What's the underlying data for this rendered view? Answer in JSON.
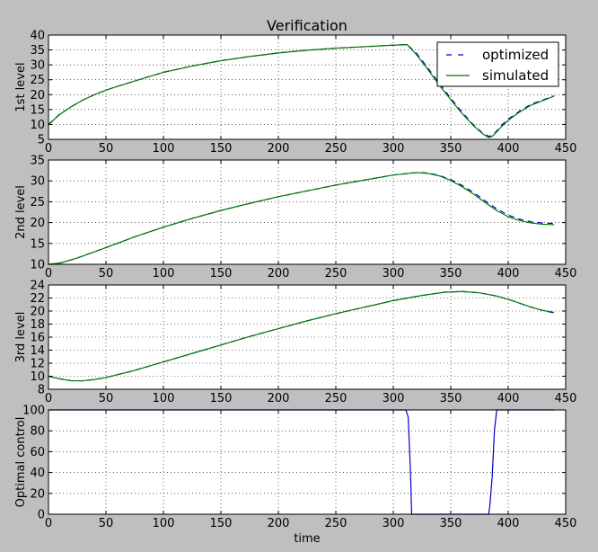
{
  "figure": {
    "title": "Verification",
    "xlabel": "time",
    "background": "#bfbfbf",
    "axes_background": "#ffffff",
    "colors": {
      "optimized": "#0000cc",
      "simulated": "#007700"
    }
  },
  "legend": {
    "placement": "top-right",
    "entries": [
      "optimized",
      "simulated"
    ]
  },
  "chart_data": [
    {
      "type": "line",
      "title": "Verification",
      "ylabel": "1st level",
      "xlim": [
        0,
        450
      ],
      "ylim": [
        5,
        40
      ],
      "grid": true,
      "xticks": [
        0,
        50,
        100,
        150,
        200,
        250,
        300,
        350,
        400,
        450
      ],
      "yticks": [
        5,
        10,
        15,
        20,
        25,
        30,
        35,
        40
      ],
      "series": [
        {
          "name": "optimized",
          "style": "dashed",
          "x": [
            0,
            5,
            10,
            20,
            30,
            40,
            50,
            60,
            75,
            100,
            125,
            150,
            175,
            200,
            225,
            250,
            275,
            300,
            312,
            320,
            330,
            340,
            350,
            360,
            370,
            378,
            383,
            386,
            390,
            395,
            400,
            410,
            420,
            430,
            440
          ],
          "y": [
            10,
            11.8,
            13.5,
            16,
            18.2,
            20,
            21.5,
            22.8,
            24.6,
            27.5,
            29.6,
            31.4,
            32.8,
            34,
            34.9,
            35.6,
            36.1,
            36.6,
            36.8,
            34,
            29,
            23.8,
            18.8,
            14,
            9.8,
            7,
            6,
            6.3,
            7.8,
            10,
            11.8,
            14.5,
            16.8,
            18.2,
            19.6
          ]
        },
        {
          "name": "simulated",
          "style": "solid",
          "x": [
            0,
            5,
            10,
            20,
            30,
            40,
            50,
            60,
            75,
            100,
            125,
            150,
            175,
            200,
            225,
            250,
            275,
            300,
            312,
            320,
            330,
            340,
            350,
            360,
            370,
            378,
            383,
            386,
            390,
            395,
            400,
            410,
            420,
            430,
            440
          ],
          "y": [
            9.8,
            11.7,
            13.4,
            16,
            18.2,
            20,
            21.5,
            22.8,
            24.6,
            27.5,
            29.6,
            31.4,
            32.8,
            34,
            34.9,
            35.6,
            36.1,
            36.6,
            36.8,
            33.5,
            28.5,
            23.2,
            18.3,
            13.6,
            9.5,
            6.8,
            5.6,
            6,
            7.5,
            9.6,
            11.4,
            14.2,
            16.5,
            18,
            19.5
          ]
        }
      ]
    },
    {
      "type": "line",
      "ylabel": "2nd level",
      "xlim": [
        0,
        450
      ],
      "ylim": [
        10,
        35
      ],
      "grid": true,
      "xticks": [
        0,
        50,
        100,
        150,
        200,
        250,
        300,
        350,
        400,
        450
      ],
      "yticks": [
        10,
        15,
        20,
        25,
        30,
        35
      ],
      "series": [
        {
          "name": "optimized",
          "style": "dashed",
          "x": [
            0,
            10,
            25,
            50,
            75,
            100,
            125,
            150,
            175,
            200,
            225,
            250,
            275,
            300,
            320,
            330,
            340,
            350,
            360,
            370,
            380,
            390,
            400,
            410,
            420,
            430,
            440
          ],
          "y": [
            10,
            10.3,
            11.5,
            14,
            16.6,
            18.9,
            21,
            22.9,
            24.6,
            26.2,
            27.6,
            29,
            30.2,
            31.4,
            32,
            31.9,
            31.3,
            30.3,
            28.9,
            27.2,
            25.2,
            23.3,
            21.8,
            20.8,
            20.2,
            19.9,
            19.8
          ]
        },
        {
          "name": "simulated",
          "style": "solid",
          "x": [
            0,
            10,
            25,
            50,
            75,
            100,
            125,
            150,
            175,
            200,
            225,
            250,
            275,
            300,
            320,
            330,
            340,
            350,
            360,
            370,
            380,
            390,
            400,
            410,
            420,
            430,
            440
          ],
          "y": [
            10,
            10.3,
            11.5,
            14,
            16.6,
            18.9,
            21,
            22.9,
            24.6,
            26.2,
            27.6,
            29,
            30.2,
            31.4,
            32,
            31.8,
            31.2,
            30.1,
            28.6,
            26.8,
            24.8,
            22.9,
            21.4,
            20.5,
            19.9,
            19.6,
            19.5
          ]
        }
      ]
    },
    {
      "type": "line",
      "ylabel": "3rd level",
      "xlim": [
        0,
        450
      ],
      "ylim": [
        8,
        24
      ],
      "grid": true,
      "xticks": [
        0,
        50,
        100,
        150,
        200,
        250,
        300,
        350,
        400,
        450
      ],
      "yticks": [
        8,
        10,
        12,
        14,
        16,
        18,
        20,
        22,
        24
      ],
      "series": [
        {
          "name": "optimized",
          "style": "dashed",
          "x": [
            0,
            10,
            20,
            30,
            40,
            50,
            75,
            100,
            125,
            150,
            175,
            200,
            225,
            250,
            275,
            300,
            325,
            345,
            360,
            375,
            390,
            400,
            410,
            420,
            430,
            440
          ],
          "y": [
            10,
            9.6,
            9.3,
            9.3,
            9.5,
            9.8,
            10.9,
            12.2,
            13.5,
            14.8,
            16.1,
            17.3,
            18.5,
            19.6,
            20.6,
            21.6,
            22.4,
            22.9,
            23,
            22.8,
            22.3,
            21.8,
            21.2,
            20.6,
            20.1,
            19.7
          ]
        },
        {
          "name": "simulated",
          "style": "solid",
          "x": [
            0,
            10,
            20,
            30,
            40,
            50,
            75,
            100,
            125,
            150,
            175,
            200,
            225,
            250,
            275,
            300,
            325,
            345,
            360,
            375,
            390,
            400,
            410,
            420,
            430,
            440
          ],
          "y": [
            10,
            9.6,
            9.3,
            9.3,
            9.5,
            9.8,
            10.9,
            12.2,
            13.5,
            14.8,
            16.1,
            17.3,
            18.5,
            19.6,
            20.6,
            21.6,
            22.4,
            22.9,
            23,
            22.8,
            22.3,
            21.8,
            21.2,
            20.6,
            20.1,
            19.8
          ]
        }
      ]
    },
    {
      "type": "line",
      "ylabel": "Optimal control",
      "xlabel": "time",
      "xlim": [
        0,
        450
      ],
      "ylim": [
        0,
        100
      ],
      "grid": true,
      "xticks": [
        0,
        50,
        100,
        150,
        200,
        250,
        300,
        350,
        400,
        450
      ],
      "yticks": [
        0,
        20,
        40,
        60,
        80,
        100
      ],
      "series": [
        {
          "name": "optimized",
          "style": "solid",
          "x": [
            0,
            311,
            313,
            315,
            316,
            383,
            384,
            386,
            388,
            390,
            440
          ],
          "y": [
            100,
            100,
            93,
            40,
            0,
            0,
            8,
            35,
            80,
            100,
            100
          ]
        }
      ]
    }
  ]
}
